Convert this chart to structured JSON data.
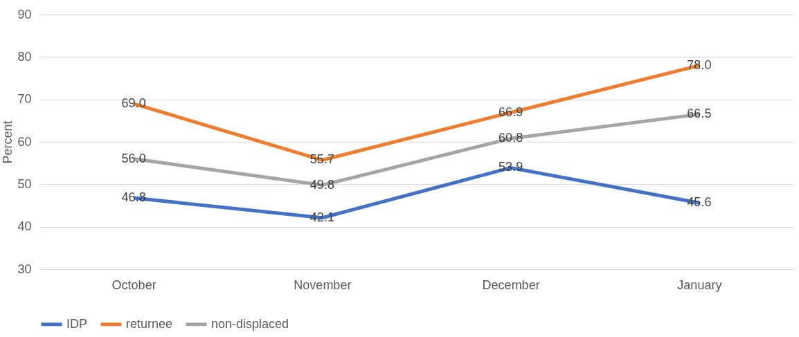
{
  "chart_data": {
    "type": "line",
    "ylabel": "Percent",
    "categories": [
      "October",
      "November",
      "December",
      "January"
    ],
    "series": [
      {
        "name": "IDP",
        "color": "#4472c4",
        "values": [
          46.8,
          42.1,
          53.9,
          45.6
        ],
        "value_labels": [
          "46.8",
          "42.1",
          "53.9",
          "45.6"
        ]
      },
      {
        "name": "returnee",
        "color": "#ed7d31",
        "values": [
          69.0,
          55.7,
          66.9,
          78.0
        ],
        "value_labels": [
          "69.0",
          "55.7",
          "66.9",
          "78.0"
        ]
      },
      {
        "name": "non-displaced",
        "color": "#a5a5a5",
        "values": [
          56.0,
          49.8,
          60.8,
          66.5
        ],
        "value_labels": [
          "56.0",
          "49.8",
          "60.8",
          "66.5"
        ]
      }
    ],
    "ylim": [
      30,
      90
    ],
    "yticks": [
      30,
      40,
      50,
      60,
      70,
      80,
      90
    ],
    "grid": "y",
    "legend": "bottom"
  }
}
